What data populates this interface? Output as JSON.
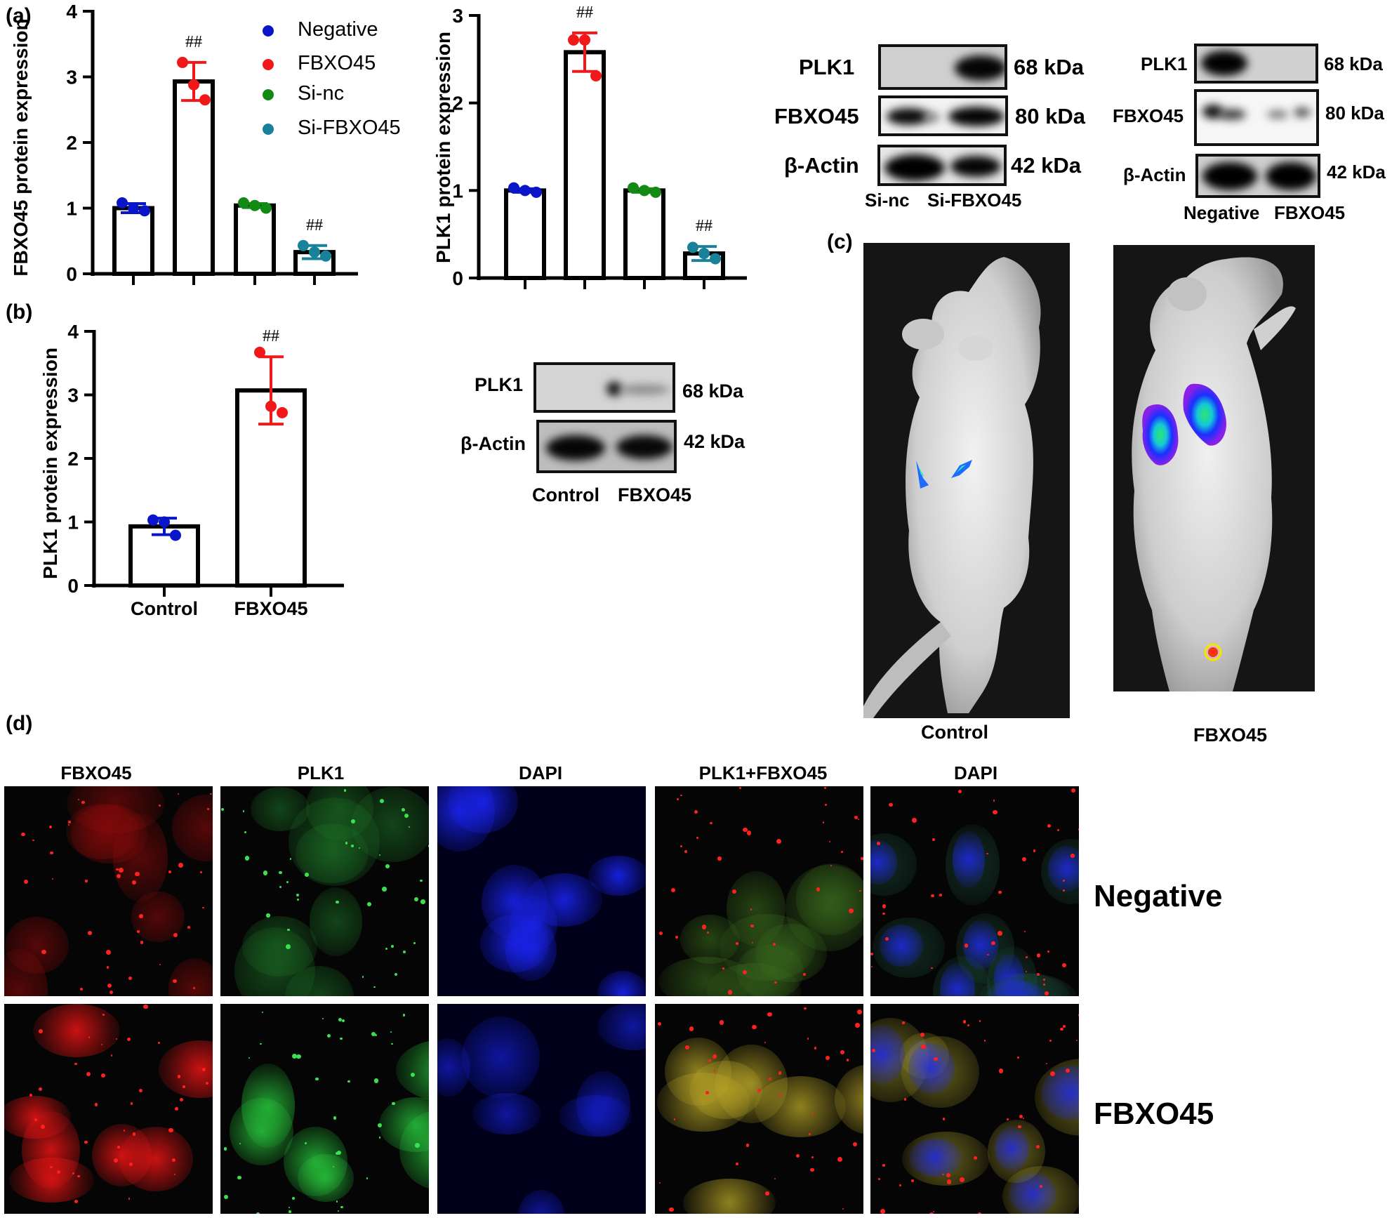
{
  "figure": {
    "panel_labels": {
      "a": "(a)",
      "b": "(b)",
      "c": "(c)",
      "d": "(d)"
    },
    "colors": {
      "negative": "#0a14c8",
      "fbxo45": "#f01818",
      "si_nc": "#138a13",
      "si_fbxo45": "#17829a",
      "bar_outline": "#000000"
    },
    "significance_mark": "##"
  },
  "chart_data": [
    {
      "id": "a1",
      "type": "bar",
      "title": "",
      "xlabel": "",
      "ylabel": "FBXO45 protein expression",
      "ylim": [
        0,
        4
      ],
      "yticks": [
        "0",
        "1",
        "2",
        "3",
        "4"
      ],
      "categories": [
        "Negative",
        "FBXO45",
        "Si-nc",
        "Si-FBXO45"
      ],
      "values": [
        1.0,
        2.93,
        1.04,
        0.33
      ],
      "errors": [
        0.07,
        0.29,
        0.03,
        0.1
      ],
      "points": [
        [
          1.08,
          1.0,
          0.96
        ],
        [
          3.22,
          2.88,
          2.65
        ],
        [
          1.08,
          1.04,
          1.0
        ],
        [
          0.43,
          0.33,
          0.27
        ]
      ],
      "significance": [
        "",
        "##",
        "",
        "##"
      ],
      "legend": [
        "Negative",
        "FBXO45",
        "Si-nc",
        "Si-FBXO45"
      ],
      "legend_position": "upper right",
      "grid": false
    },
    {
      "id": "a2",
      "type": "bar",
      "title": "",
      "xlabel": "",
      "ylabel": "PLK1 protein expression",
      "ylim": [
        0,
        3
      ],
      "yticks": [
        "0",
        "1",
        "2",
        "3"
      ],
      "categories": [
        "Negative",
        "FBXO45",
        "Si-nc",
        "Si-FBXO45"
      ],
      "values": [
        1.0,
        2.58,
        1.0,
        0.28
      ],
      "errors": [
        0.02,
        0.22,
        0.02,
        0.08
      ],
      "points": [
        [
          1.03,
          1.0,
          0.98
        ],
        [
          2.72,
          2.72,
          2.31
        ],
        [
          1.03,
          1.0,
          0.98
        ],
        [
          0.35,
          0.28,
          0.22
        ]
      ],
      "significance": [
        "",
        "##",
        "",
        "##"
      ],
      "grid": false
    },
    {
      "id": "b",
      "type": "bar",
      "title": "",
      "xlabel": "",
      "ylabel": "PLK1 protein expression",
      "ylim": [
        0,
        4
      ],
      "yticks": [
        "0",
        "1",
        "2",
        "3",
        "4"
      ],
      "categories": [
        "Control",
        "FBXO45"
      ],
      "values": [
        0.93,
        3.07
      ],
      "errors": [
        0.13,
        0.53
      ],
      "points": [
        [
          1.03,
          1.0,
          0.79
        ],
        [
          3.67,
          2.82,
          2.72
        ]
      ],
      "significance": [
        "",
        "##"
      ],
      "xticklabels": [
        "Control",
        "FBXO45"
      ],
      "grid": false
    }
  ],
  "western_blots": {
    "a_left": {
      "rows": [
        {
          "label": "PLK1",
          "kda": "68 kDa"
        },
        {
          "label": "FBXO45",
          "kda": "80 kDa"
        },
        {
          "label": "β-Actin",
          "kda": "42 kDa"
        }
      ],
      "lanes": [
        "Si-nc",
        "Si-FBXO45"
      ]
    },
    "a_right": {
      "rows": [
        {
          "label": "PLK1",
          "kda": "68 kDa"
        },
        {
          "label": "FBXO45",
          "kda": "80 kDa"
        },
        {
          "label": "β-Actin",
          "kda": "42 kDa"
        }
      ],
      "lanes": [
        "Negative",
        "FBXO45"
      ]
    },
    "b": {
      "rows": [
        {
          "label": "PLK1",
          "kda": "68 kDa"
        },
        {
          "label": "β-Actin",
          "kda": "42 kDa"
        }
      ],
      "lanes": [
        "Control",
        "FBXO45"
      ]
    }
  },
  "imaging": {
    "captions": [
      "Control",
      "FBXO45"
    ]
  },
  "microscopy": {
    "columns": [
      "FBXO45",
      "PLK1",
      "DAPI",
      "PLK1+FBXO45",
      "DAPI"
    ],
    "rows": [
      "Negative",
      "FBXO45"
    ]
  }
}
